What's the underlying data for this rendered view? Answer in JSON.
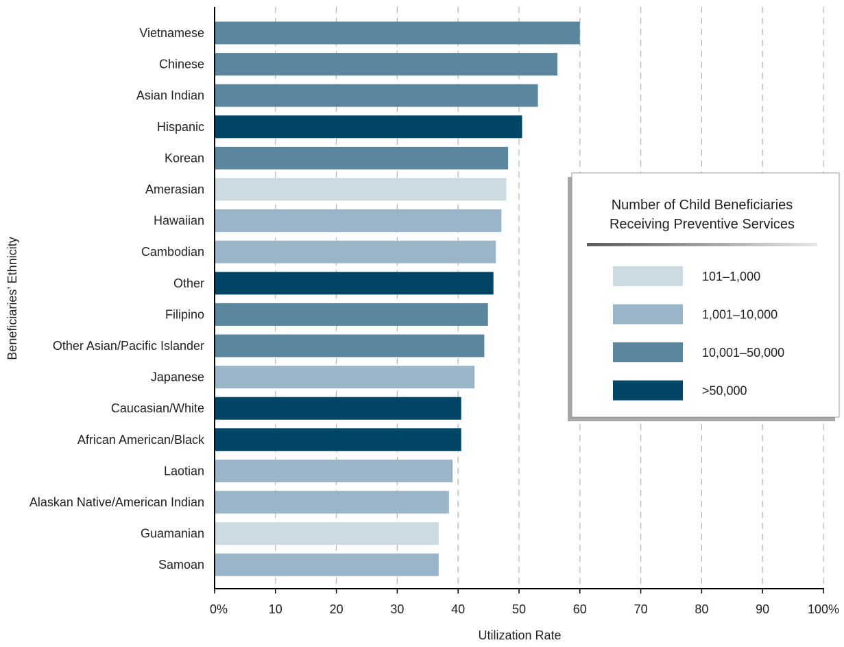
{
  "chart_data": {
    "type": "bar",
    "orientation": "horizontal",
    "categories": [
      "Vietnamese",
      "Chinese",
      "Asian Indian",
      "Hispanic",
      "Korean",
      "Amerasian",
      "Hawaiian",
      "Cambodian",
      "Other",
      "Filipino",
      "Other Asian/Pacific Islander",
      "Japanese",
      "Caucasian/White",
      "African American/Black",
      "Laotian",
      "Alaskan Native/American Indian",
      "Guamanian",
      "Samoan"
    ],
    "values": [
      60,
      56.3,
      53.1,
      50.5,
      48.2,
      47.9,
      47.1,
      46.2,
      45.8,
      44.9,
      44.3,
      42.7,
      40.5,
      40.5,
      39.1,
      38.5,
      36.8,
      36.8
    ],
    "groups": [
      "10,001–50,000",
      "10,001–50,000",
      "10,001–50,000",
      ">50,000",
      "10,001–50,000",
      "101–1,000",
      "1,001–10,000",
      "1,001–10,000",
      ">50,000",
      "10,001–50,000",
      "10,001–50,000",
      "1,001–10,000",
      ">50,000",
      ">50,000",
      "1,001–10,000",
      "1,001–10,000",
      "101–1,000",
      "1,001–10,000"
    ],
    "xlim": [
      0,
      100
    ],
    "xticks": [
      0,
      10,
      20,
      30,
      40,
      50,
      60,
      70,
      80,
      90,
      100
    ],
    "xtick_labels": [
      "0%",
      "10",
      "20",
      "30",
      "40",
      "50",
      "60",
      "70",
      "80",
      "90",
      "100%"
    ],
    "xlabel": "Utilization Rate",
    "ylabel": "Beneficiaries’ Ethnicity",
    "grid": "vertical dashed",
    "legend": {
      "title_lines": [
        "Number of Child Beneficiaries",
        "Receiving Preventive Services"
      ],
      "placement": "right",
      "entries": [
        {
          "label": "101–1,000",
          "color": "#ccdbe2"
        },
        {
          "label": "1,001–10,000",
          "color": "#9ab5c7"
        },
        {
          "label": "10,001–50,000",
          "color": "#5a86a0"
        },
        {
          "label": ">50,000",
          "color": "#004466"
        }
      ]
    }
  }
}
